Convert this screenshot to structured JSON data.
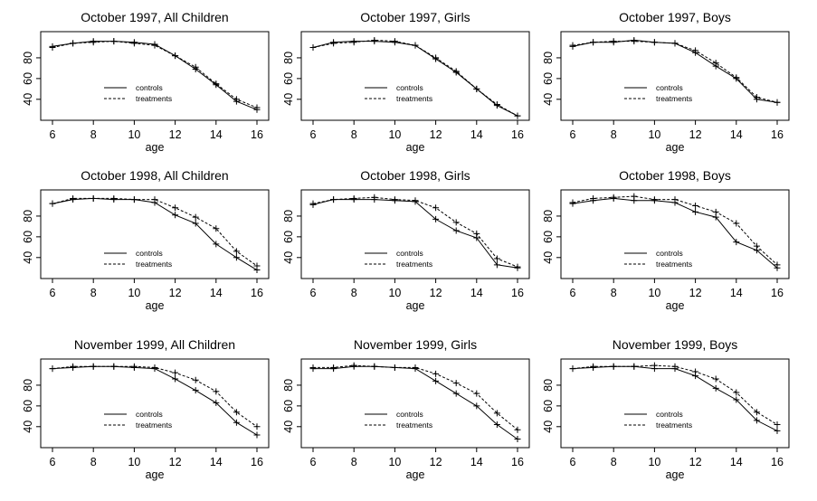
{
  "figure": {
    "xlabel": "age",
    "legend_labels": [
      "controls",
      "treatments"
    ]
  },
  "chart_data": [
    {
      "type": "line",
      "title": "October 1997, All Children",
      "xlabel": "age",
      "ylabel": "",
      "xlim": [
        6,
        16
      ],
      "ylim": [
        25,
        100
      ],
      "x": [
        6,
        7,
        8,
        9,
        10,
        11,
        12,
        13,
        14,
        15,
        16
      ],
      "xticks": [
        6,
        8,
        10,
        12,
        14,
        16
      ],
      "yticks": [
        40,
        60,
        80
      ],
      "legend": "center",
      "series": [
        {
          "name": "controls",
          "values": [
            91,
            94,
            96,
            96,
            95,
            93,
            82,
            69,
            54,
            38,
            30
          ]
        },
        {
          "name": "treatments",
          "values": [
            90,
            94,
            95,
            96,
            94,
            92,
            82,
            71,
            55,
            40,
            32
          ]
        }
      ]
    },
    {
      "type": "line",
      "title": "October 1997, Girls",
      "xlabel": "age",
      "ylabel": "",
      "xlim": [
        6,
        16
      ],
      "ylim": [
        25,
        100
      ],
      "x": [
        6,
        7,
        8,
        9,
        10,
        11,
        12,
        13,
        14,
        15,
        16
      ],
      "xticks": [
        6,
        8,
        10,
        12,
        14,
        16
      ],
      "yticks": [
        40,
        60,
        80
      ],
      "legend": "center",
      "series": [
        {
          "name": "controls",
          "values": [
            90,
            95,
            96,
            96,
            95,
            92,
            79,
            66,
            50,
            34,
            24
          ]
        },
        {
          "name": "treatments",
          "values": [
            90,
            94,
            95,
            97,
            96,
            92,
            80,
            67,
            50,
            35,
            24
          ]
        }
      ]
    },
    {
      "type": "line",
      "title": "October 1997, Boys",
      "xlabel": "age",
      "ylabel": "",
      "xlim": [
        6,
        16
      ],
      "ylim": [
        25,
        100
      ],
      "x": [
        6,
        7,
        8,
        9,
        10,
        11,
        12,
        13,
        14,
        15,
        16
      ],
      "xticks": [
        6,
        8,
        10,
        12,
        14,
        16
      ],
      "yticks": [
        40,
        60,
        80
      ],
      "legend": "center",
      "series": [
        {
          "name": "controls",
          "values": [
            91,
            95,
            95,
            97,
            95,
            94,
            85,
            72,
            60,
            40,
            37
          ]
        },
        {
          "name": "treatments",
          "values": [
            92,
            95,
            96,
            96,
            95,
            94,
            87,
            75,
            61,
            42,
            37
          ]
        }
      ]
    },
    {
      "type": "line",
      "title": "October 1998, All Children",
      "xlabel": "age",
      "ylabel": "",
      "xlim": [
        6,
        16
      ],
      "ylim": [
        25,
        100
      ],
      "x": [
        6,
        7,
        8,
        9,
        10,
        11,
        12,
        13,
        14,
        15,
        16
      ],
      "xticks": [
        6,
        8,
        10,
        12,
        14,
        16
      ],
      "yticks": [
        40,
        60,
        80
      ],
      "legend": "bottom-center",
      "series": [
        {
          "name": "controls",
          "values": [
            92,
            96,
            97,
            96,
            96,
            93,
            81,
            73,
            53,
            40,
            28
          ]
        },
        {
          "name": "treatments",
          "values": [
            92,
            97,
            97,
            97,
            96,
            96,
            88,
            79,
            68,
            46,
            32
          ]
        }
      ]
    },
    {
      "type": "line",
      "title": "October 1998, Girls",
      "xlabel": "age",
      "ylabel": "",
      "xlim": [
        6,
        16
      ],
      "ylim": [
        25,
        100
      ],
      "x": [
        6,
        7,
        8,
        9,
        10,
        11,
        12,
        13,
        14,
        15,
        16
      ],
      "xticks": [
        6,
        8,
        10,
        12,
        14,
        16
      ],
      "yticks": [
        40,
        60,
        80
      ],
      "legend": "bottom-center",
      "series": [
        {
          "name": "controls",
          "values": [
            91,
            96,
            96,
            96,
            95,
            94,
            77,
            66,
            59,
            33,
            30
          ]
        },
        {
          "name": "treatments",
          "values": [
            92,
            96,
            97,
            98,
            96,
            95,
            88,
            74,
            63,
            39,
            31
          ]
        }
      ]
    },
    {
      "type": "line",
      "title": "October 1998, Boys",
      "xlabel": "age",
      "ylabel": "",
      "xlim": [
        6,
        16
      ],
      "ylim": [
        25,
        100
      ],
      "x": [
        6,
        7,
        8,
        9,
        10,
        11,
        12,
        13,
        14,
        15,
        16
      ],
      "xticks": [
        6,
        8,
        10,
        12,
        14,
        16
      ],
      "yticks": [
        40,
        60,
        80
      ],
      "legend": "bottom-center",
      "series": [
        {
          "name": "controls",
          "values": [
            92,
            95,
            97,
            95,
            95,
            93,
            84,
            79,
            55,
            47,
            30
          ]
        },
        {
          "name": "treatments",
          "values": [
            93,
            97,
            98,
            99,
            96,
            96,
            90,
            84,
            73,
            51,
            33
          ]
        }
      ]
    },
    {
      "type": "line",
      "title": "November 1999, All Children",
      "xlabel": "age",
      "ylabel": "",
      "xlim": [
        6,
        16
      ],
      "ylim": [
        25,
        100
      ],
      "x": [
        6,
        7,
        8,
        9,
        10,
        11,
        12,
        13,
        14,
        15,
        16
      ],
      "xticks": [
        6,
        8,
        10,
        12,
        14,
        16
      ],
      "yticks": [
        40,
        60,
        80
      ],
      "legend": "bottom-center",
      "series": [
        {
          "name": "controls",
          "values": [
            96,
            97,
            98,
            98,
            97,
            96,
            86,
            75,
            63,
            44,
            32
          ]
        },
        {
          "name": "treatments",
          "values": [
            96,
            98,
            98,
            98,
            98,
            97,
            92,
            85,
            74,
            54,
            40
          ]
        }
      ]
    },
    {
      "type": "line",
      "title": "November 1999, Girls",
      "xlabel": "age",
      "ylabel": "",
      "xlim": [
        6,
        16
      ],
      "ylim": [
        25,
        100
      ],
      "x": [
        6,
        7,
        8,
        9,
        10,
        11,
        12,
        13,
        14,
        15,
        16
      ],
      "xticks": [
        6,
        8,
        10,
        12,
        14,
        16
      ],
      "yticks": [
        40,
        60,
        80
      ],
      "legend": "bottom-center",
      "series": [
        {
          "name": "controls",
          "values": [
            96,
            96,
            98,
            98,
            97,
            96,
            84,
            72,
            60,
            42,
            28
          ]
        },
        {
          "name": "treatments",
          "values": [
            97,
            97,
            99,
            98,
            97,
            97,
            91,
            82,
            72,
            53,
            37
          ]
        }
      ]
    },
    {
      "type": "line",
      "title": "November 1999, Boys",
      "xlabel": "age",
      "ylabel": "",
      "xlim": [
        6,
        16
      ],
      "ylim": [
        25,
        100
      ],
      "x": [
        6,
        7,
        8,
        9,
        10,
        11,
        12,
        13,
        14,
        15,
        16
      ],
      "xticks": [
        6,
        8,
        10,
        12,
        14,
        16
      ],
      "yticks": [
        40,
        60,
        80
      ],
      "legend": "bottom-center",
      "series": [
        {
          "name": "controls",
          "values": [
            96,
            97,
            98,
            98,
            96,
            96,
            89,
            77,
            66,
            46,
            36
          ]
        },
        {
          "name": "treatments",
          "values": [
            96,
            98,
            98,
            98,
            99,
            98,
            93,
            86,
            73,
            54,
            42
          ]
        }
      ]
    }
  ]
}
